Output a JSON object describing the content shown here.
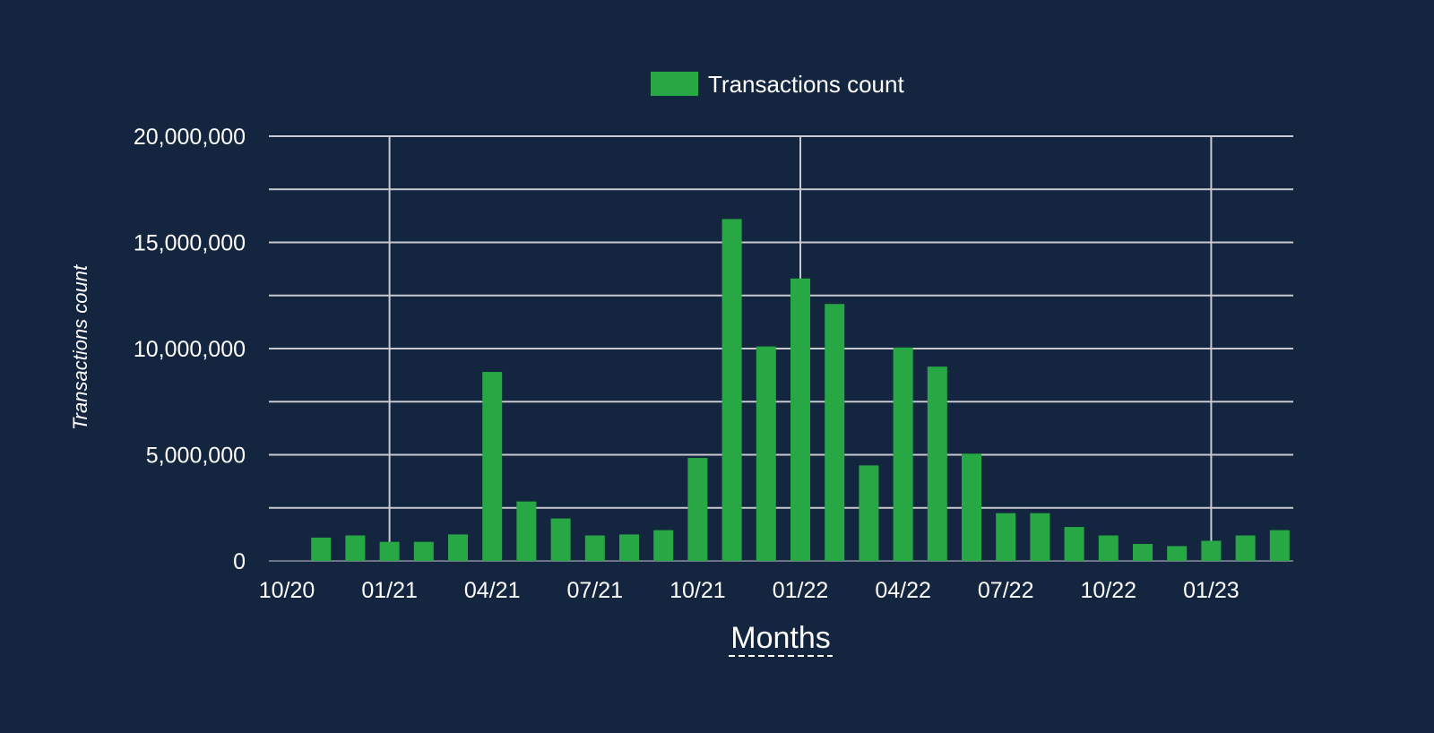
{
  "chart_data": {
    "type": "bar",
    "legend": {
      "label": "Transactions count",
      "position": "top"
    },
    "xlabel": "Months",
    "ylabel": "Transactions count",
    "ylim": [
      0,
      20000000
    ],
    "y_ticks": [
      "0",
      "5,000,000",
      "10,000,000",
      "15,000,000",
      "20,000,000"
    ],
    "y_tick_values": [
      0,
      5000000,
      10000000,
      15000000,
      20000000
    ],
    "x_ticks": [
      "10/20",
      "01/21",
      "04/21",
      "07/21",
      "10/21",
      "01/22",
      "04/22",
      "07/22",
      "10/22",
      "01/23"
    ],
    "grid": true,
    "colors": {
      "background": "#13253f",
      "bar": "#27a844",
      "grid": "#c8c8d0"
    },
    "categories": [
      "11/20",
      "12/20",
      "01/21",
      "02/21",
      "03/21",
      "04/21",
      "05/21",
      "06/21",
      "07/21",
      "08/21",
      "09/21",
      "10/21",
      "11/21",
      "12/21",
      "01/22",
      "02/22",
      "03/22",
      "04/22",
      "05/22",
      "06/22",
      "07/22",
      "08/22",
      "09/22",
      "10/22",
      "11/22",
      "12/22",
      "01/23",
      "02/23",
      "03/23"
    ],
    "values": [
      1100000,
      1200000,
      900000,
      900000,
      1250000,
      8900000,
      2800000,
      2000000,
      1200000,
      1250000,
      1450000,
      4850000,
      16100000,
      10100000,
      13300000,
      12100000,
      4500000,
      10050000,
      9150000,
      5050000,
      2250000,
      2250000,
      1600000,
      1200000,
      800000,
      700000,
      950000,
      1200000,
      1450000
    ]
  }
}
